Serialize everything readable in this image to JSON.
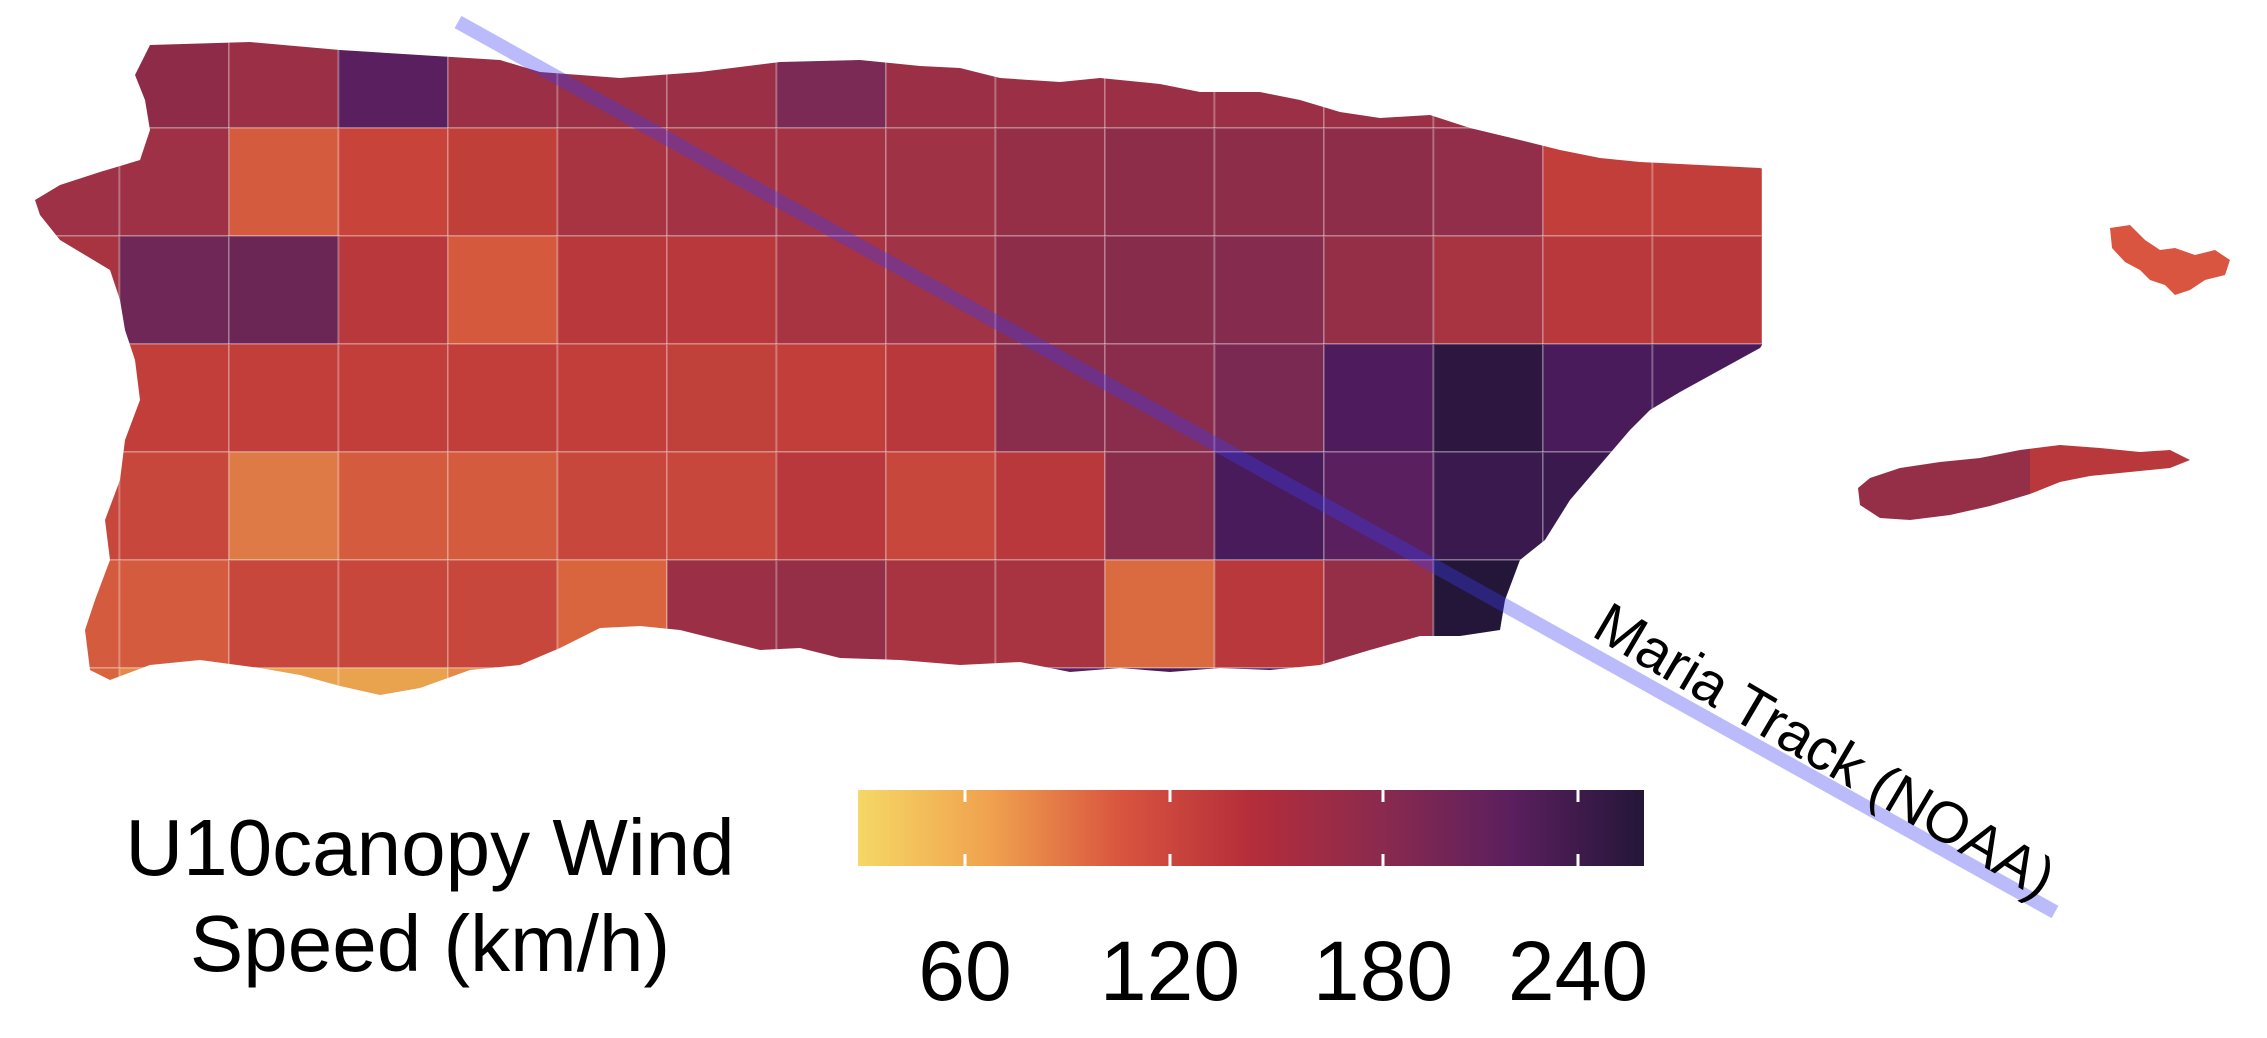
{
  "legend": {
    "title_line1": "U10canopy Wind",
    "title_line2": "Speed (km/h)",
    "ticks": [
      "60",
      "120",
      "180",
      "240"
    ],
    "colors": [
      "#f5d866",
      "#f0a24e",
      "#d9553f",
      "#b52d3a",
      "#8a2a4e",
      "#5a1f5e",
      "#241638"
    ]
  },
  "track": {
    "label": "Maria Track (NOAA)",
    "color": "#3d3cf5"
  },
  "grid_colors": [
    [
      "#8a2e4a",
      "#8d2b48",
      "#9a2f45",
      "#5a1f5e",
      "#9a2f45",
      "#9a2f45",
      "#9a2f45",
      "#7a2a55",
      "#9a2f45",
      "#9a2f45",
      "#9a2f45",
      "#9a2f45",
      "#9a2f45",
      "#9a2f45",
      "#9a2f45",
      "#9a2f45"
    ],
    [
      "#9e3146",
      "#9e3146",
      "#d45b3e",
      "#c8443b",
      "#c04039",
      "#a83442",
      "#a33344",
      "#a33344",
      "#9f3345",
      "#952f48",
      "#8e2d4a",
      "#8e2d4a",
      "#8e2d4a",
      "#922e49",
      "#c23e3a",
      "#c23e3a"
    ],
    [
      "#a83442",
      "#6e2756",
      "#6b2656",
      "#b8383c",
      "#d5593d",
      "#b8383c",
      "#b8383c",
      "#a83442",
      "#a03346",
      "#8e2d4a",
      "#882c4c",
      "#842b4e",
      "#952f48",
      "#a83442",
      "#b8383c",
      "#b8383c"
    ],
    [
      "#6b2656",
      "#c23e3a",
      "#c23e3a",
      "#c23e3a",
      "#c23e3a",
      "#c23e3a",
      "#c0413a",
      "#c23e3a",
      "#b8383c",
      "#8a2c4c",
      "#8a2c4c",
      "#7a2a52",
      "#4e1c5c",
      "#2d1740",
      "#4a1b5b",
      "#4a1b5b"
    ],
    [
      "#c8473c",
      "#c8473c",
      "#de7a45",
      "#d45b3e",
      "#d45b3e",
      "#c8473c",
      "#c8473c",
      "#b8383c",
      "#c8473c",
      "#b8383c",
      "#8a2c4c",
      "#4a1b5b",
      "#5a1f5e",
      "#3a1a4e",
      "#3a1a4e",
      "#3a1a4e"
    ],
    [
      "#d45b3e",
      "#d45b3e",
      "#c8473c",
      "#c8473c",
      "#c8473c",
      "#d9653f",
      "#9a2f45",
      "#952f48",
      "#a83442",
      "#a83442",
      "#da6a40",
      "#b8383c",
      "#952f48",
      "#241638",
      "#241638",
      "#241638"
    ],
    [
      "#d9653f",
      "#e38a4a",
      "#e9a24e",
      "#e9a24e",
      "#e38a4a",
      "#d9653f",
      "#9a2f45",
      "#952f48",
      "#3a1a4e",
      "#5a1f5e",
      "#4a1b5b",
      "#4a1b5b",
      "#5a1f5e",
      "#3a1a4e",
      "#3a1a4e",
      "#3a1a4e"
    ]
  ],
  "culebra_color": "#d9553f",
  "vieques_colors": [
    "#952f48",
    "#b8383c"
  ]
}
